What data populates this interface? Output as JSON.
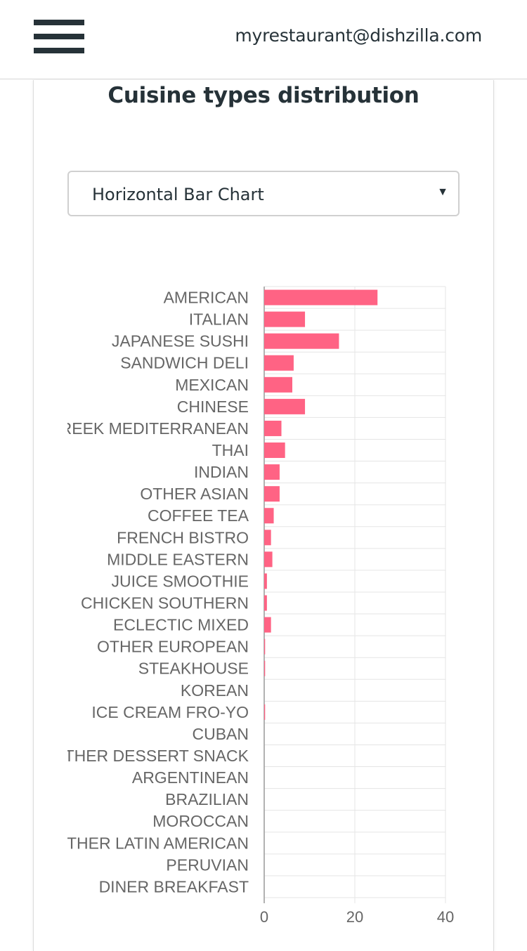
{
  "header": {
    "menu_icon": "hamburger-menu-icon",
    "email": "myrestaurant@dishzilla.com"
  },
  "card": {
    "title": "Cuisine types distribution",
    "chart_select": {
      "value": "Horizontal Bar Chart",
      "arrow": "▼"
    }
  },
  "colors": {
    "bar": "#ff6384",
    "text": "#263238",
    "grid": "#e5e5e5",
    "axis": "#999999"
  },
  "chart_data": {
    "type": "bar",
    "orientation": "horizontal",
    "categories": [
      "AMERICAN",
      "ITALIAN",
      "JAPANESE SUSHI",
      "SANDWICH DELI",
      "MEXICAN",
      "CHINESE",
      "GREEK MEDITERRANEAN",
      "THAI",
      "INDIAN",
      "OTHER ASIAN",
      "COFFEE TEA",
      "FRENCH BISTRO",
      "MIDDLE EASTERN",
      "JUICE SMOOTHIE",
      "CHICKEN SOUTHERN",
      "ECLECTIC MIXED",
      "OTHER EUROPEAN",
      "STEAKHOUSE",
      "KOREAN",
      "ICE CREAM FRO-YO",
      "CUBAN",
      "OTHER DESSERT SNACK",
      "ARGENTINEAN",
      "BRAZILIAN",
      "MOROCCAN",
      "OTHER LATIN AMERICAN",
      "PERUVIAN",
      "DINER BREAKFAST"
    ],
    "values": [
      25,
      9,
      16.5,
      6.5,
      6.2,
      9,
      3.8,
      4.6,
      3.4,
      3.4,
      2.1,
      1.5,
      1.8,
      0.6,
      0.6,
      1.5,
      0.2,
      0.2,
      0,
      0.2,
      0,
      0,
      0,
      0,
      0,
      0,
      0,
      0
    ],
    "xlim": [
      0,
      40
    ],
    "xticks": [
      "0",
      "20",
      "40"
    ],
    "grid": true,
    "legend": "none"
  }
}
